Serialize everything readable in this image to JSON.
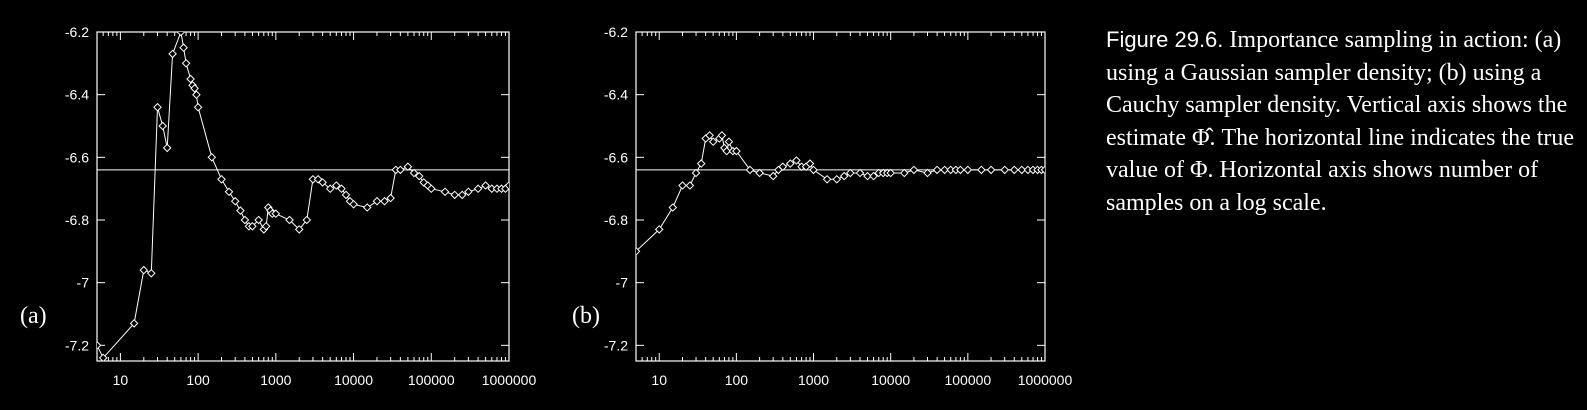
{
  "caption": {
    "figure_label": "Figure 29.6.",
    "text": "Importance sampling in action: (a) using a Gaussian sampler density; (b) using a Cauchy sampler density. Vertical axis shows the estimate Φ̂. The horizontal line indicates the true value of Φ. Horizontal axis shows number of samples on a log scale."
  },
  "colors": {
    "background": "#000000",
    "foreground": "#ffffff"
  },
  "chart_data": [
    {
      "type": "line",
      "panel_label": "(a)",
      "x_scale": "log",
      "xlim": [
        5,
        1000000
      ],
      "ylim": [
        -7.25,
        -6.2
      ],
      "x_tick_labels": [
        "10",
        "100",
        "1000",
        "10000",
        "100000",
        "1000000"
      ],
      "x_tick_values": [
        10,
        100,
        1000,
        10000,
        100000,
        1000000
      ],
      "y_tick_labels": [
        "-6.2",
        "-6.4",
        "-6.6",
        "-6.8",
        "-7",
        "-7.2"
      ],
      "y_tick_values": [
        -6.2,
        -6.4,
        -6.6,
        -6.8,
        -7.0,
        -7.2
      ],
      "true_value": -6.64,
      "marker": "diamond",
      "x": [
        5,
        6,
        15,
        20,
        25,
        30,
        35,
        40,
        47,
        60,
        65,
        70,
        80,
        85,
        90,
        95,
        100,
        150,
        200,
        250,
        300,
        350,
        400,
        450,
        500,
        600,
        700,
        750,
        800,
        850,
        900,
        1000,
        1500,
        2000,
        2500,
        3000,
        3500,
        4000,
        5000,
        6000,
        7000,
        8000,
        9000,
        10000,
        15000,
        20000,
        25000,
        30000,
        35000,
        40000,
        50000,
        60000,
        70000,
        80000,
        90000,
        100000,
        150000,
        200000,
        250000,
        300000,
        400000,
        500000,
        600000,
        700000,
        800000,
        900000,
        1000000
      ],
      "y": [
        -7.2,
        -7.24,
        -7.13,
        -6.96,
        -6.97,
        -6.44,
        -6.5,
        -6.57,
        -6.27,
        -6.2,
        -6.25,
        -6.3,
        -6.35,
        -6.37,
        -6.38,
        -6.4,
        -6.44,
        -6.6,
        -6.67,
        -6.71,
        -6.74,
        -6.77,
        -6.8,
        -6.82,
        -6.82,
        -6.8,
        -6.83,
        -6.82,
        -6.76,
        -6.77,
        -6.78,
        -6.78,
        -6.8,
        -6.83,
        -6.8,
        -6.67,
        -6.67,
        -6.68,
        -6.7,
        -6.69,
        -6.7,
        -6.72,
        -6.74,
        -6.75,
        -6.76,
        -6.74,
        -6.74,
        -6.73,
        -6.64,
        -6.64,
        -6.63,
        -6.65,
        -6.66,
        -6.68,
        -6.69,
        -6.7,
        -6.71,
        -6.72,
        -6.72,
        -6.71,
        -6.7,
        -6.69,
        -6.7,
        -6.7,
        -6.7,
        -6.7,
        -6.69
      ]
    },
    {
      "type": "line",
      "panel_label": "(b)",
      "x_scale": "log",
      "xlim": [
        5,
        1000000
      ],
      "ylim": [
        -7.25,
        -6.2
      ],
      "x_tick_labels": [
        "10",
        "100",
        "1000",
        "10000",
        "100000",
        "1000000"
      ],
      "x_tick_values": [
        10,
        100,
        1000,
        10000,
        100000,
        1000000
      ],
      "y_tick_labels": [
        "-6.2",
        "-6.4",
        "-6.6",
        "-6.8",
        "-7",
        "-7.2"
      ],
      "y_tick_values": [
        -6.2,
        -6.4,
        -6.6,
        -6.8,
        -7.0,
        -7.2
      ],
      "true_value": -6.64,
      "marker": "diamond",
      "x": [
        5,
        10,
        15,
        20,
        25,
        30,
        35,
        40,
        45,
        50,
        60,
        65,
        70,
        75,
        80,
        90,
        100,
        150,
        200,
        300,
        350,
        400,
        500,
        600,
        700,
        800,
        900,
        1000,
        1500,
        2000,
        2500,
        3000,
        4000,
        5000,
        6000,
        7000,
        8000,
        9000,
        10000,
        15000,
        20000,
        30000,
        40000,
        50000,
        60000,
        70000,
        80000,
        100000,
        150000,
        200000,
        300000,
        400000,
        500000,
        600000,
        700000,
        800000,
        900000,
        1000000
      ],
      "y": [
        -6.9,
        -6.83,
        -6.76,
        -6.69,
        -6.69,
        -6.65,
        -6.62,
        -6.54,
        -6.53,
        -6.55,
        -6.54,
        -6.53,
        -6.57,
        -6.58,
        -6.55,
        -6.58,
        -6.58,
        -6.64,
        -6.65,
        -6.66,
        -6.64,
        -6.63,
        -6.62,
        -6.61,
        -6.63,
        -6.63,
        -6.62,
        -6.64,
        -6.67,
        -6.67,
        -6.66,
        -6.65,
        -6.65,
        -6.66,
        -6.66,
        -6.65,
        -6.65,
        -6.65,
        -6.65,
        -6.65,
        -6.64,
        -6.65,
        -6.64,
        -6.64,
        -6.64,
        -6.64,
        -6.64,
        -6.64,
        -6.64,
        -6.64,
        -6.64,
        -6.64,
        -6.64,
        -6.64,
        -6.64,
        -6.64,
        -6.64,
        -6.64
      ]
    }
  ]
}
